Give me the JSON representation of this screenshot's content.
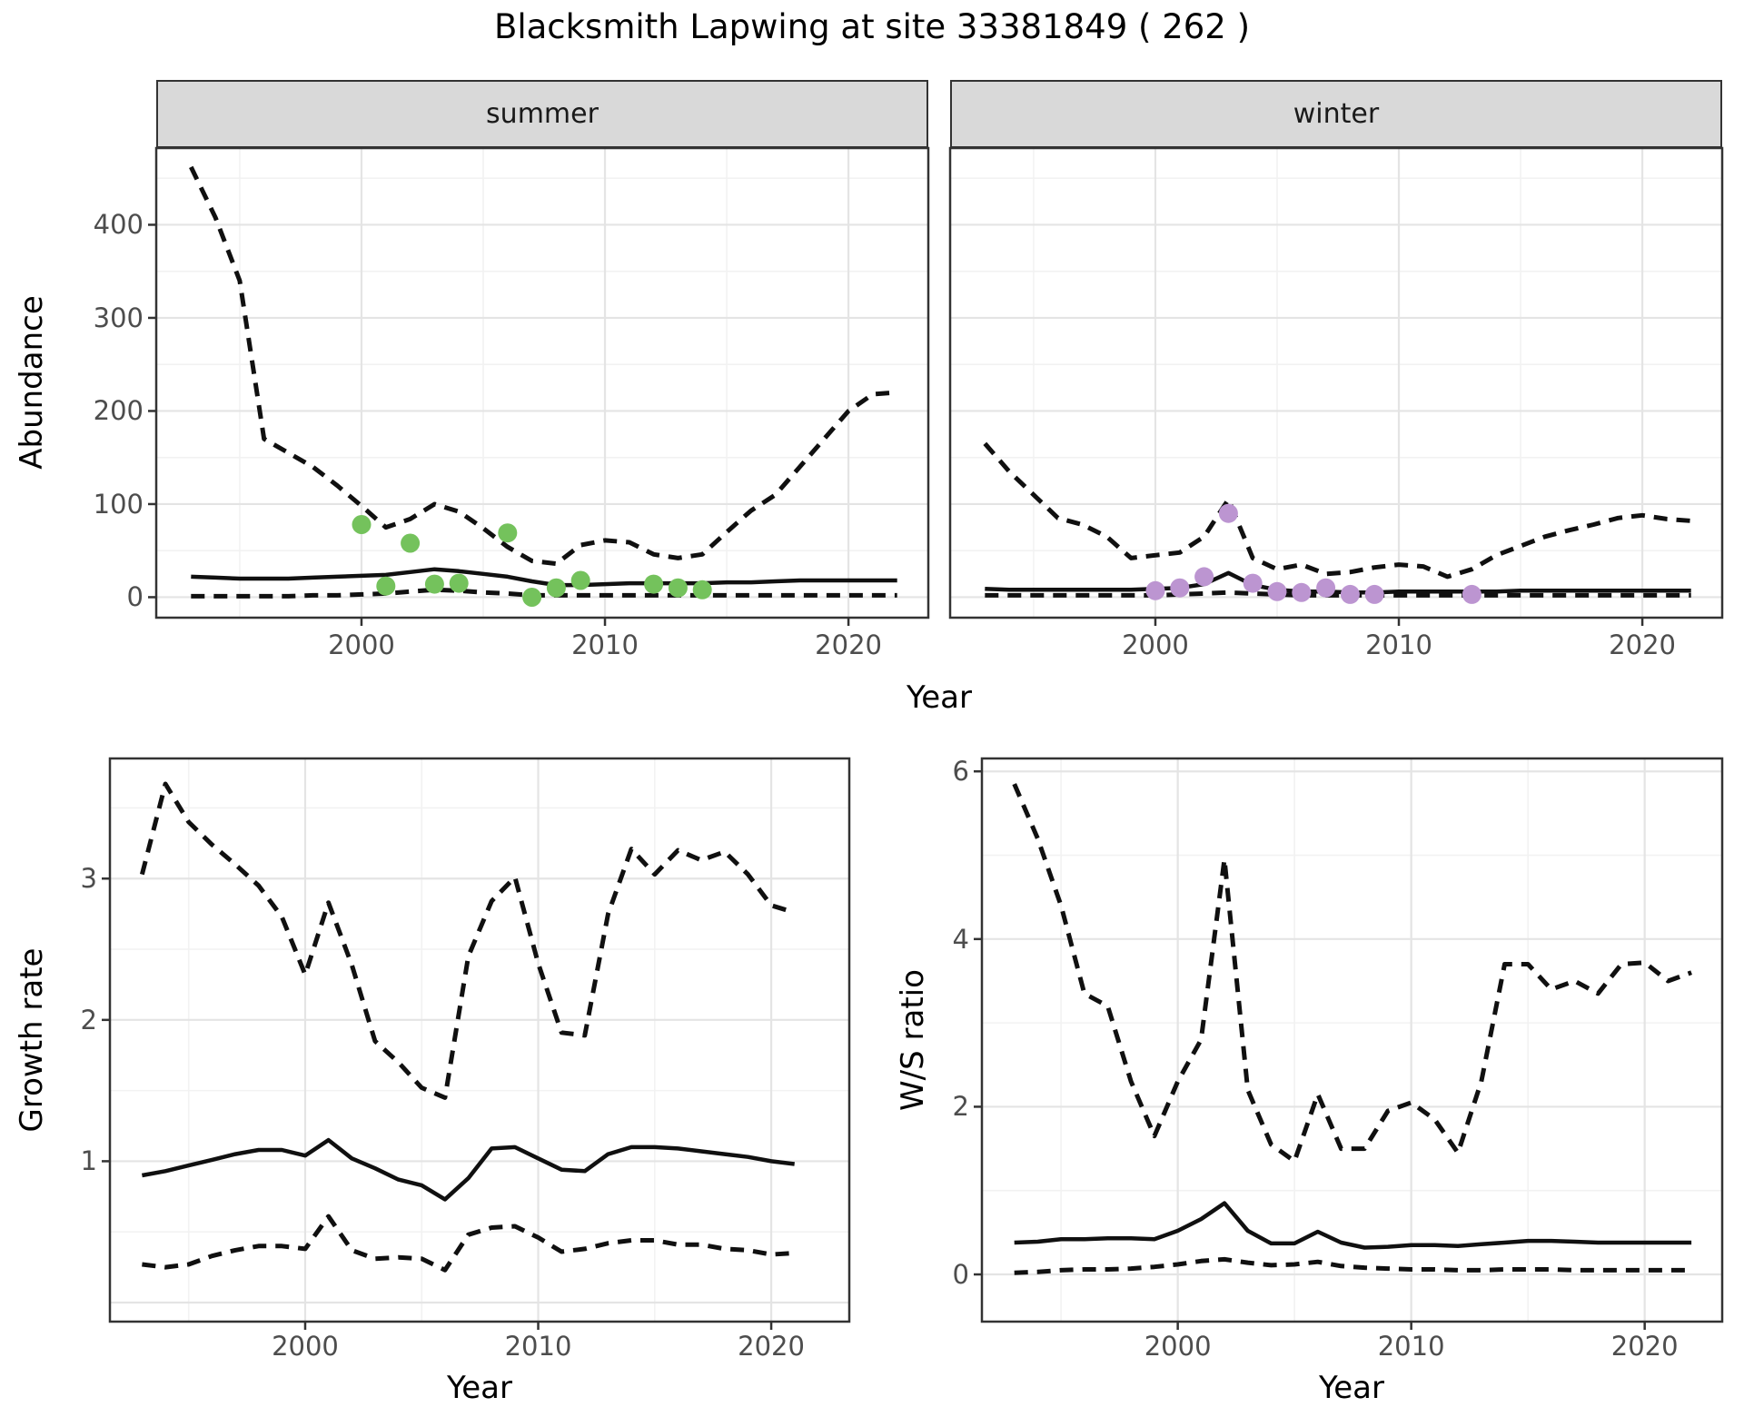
{
  "labels": {
    "title": "Blacksmith Lapwing at site 33381849 ( 262 )",
    "year": "Year",
    "abundance": "Abundance",
    "growth": "Growth rate",
    "ws": "W/S ratio"
  },
  "facets": [
    {
      "label": "summer"
    },
    {
      "label": "winter"
    }
  ],
  "colors": {
    "summer_point": "#74C25C",
    "winter_point": "#BC95D1",
    "line": "#101010",
    "strip_bg": "#D9D9D9",
    "panel_border": "#333333",
    "grid_major": "#E4E4E4",
    "grid_minor": "#F2F2F2",
    "tick_mark": "#333333",
    "tick_text": "#4D4D4D"
  },
  "chart_data": [
    {
      "id": "abundance_summer",
      "type": "line",
      "facet": "summer",
      "xlabel": "Year",
      "ylabel": "Abundance",
      "xlim": [
        1991.57,
        2023.28
      ],
      "ylim": [
        -22,
        482.4
      ],
      "xticks": [
        2000,
        2010,
        2020
      ],
      "xticks_minor": [
        1995,
        2005,
        2015
      ],
      "yticks": [
        0,
        100,
        200,
        300,
        400
      ],
      "yticks_grid": [
        0,
        100,
        200,
        300,
        400
      ],
      "yticks_minor": [
        50,
        150,
        250,
        350,
        450
      ],
      "x": [
        1993,
        1994,
        1995,
        1996,
        1997,
        1998,
        1999,
        2000,
        2001,
        2002,
        2003,
        2004,
        2005,
        2006,
        2007,
        2008,
        2009,
        2010,
        2011,
        2012,
        2013,
        2014,
        2015,
        2016,
        2017,
        2018,
        2019,
        2020,
        2021,
        2022
      ],
      "series": [
        {
          "name": "upper_95CI",
          "style": "dashed",
          "values": [
            462,
            408,
            340,
            170,
            155,
            140,
            120,
            98,
            75,
            84,
            100,
            92,
            74,
            54,
            39,
            36,
            56,
            61,
            59,
            46,
            42,
            46,
            70,
            93,
            110,
            140,
            170,
            200,
            218,
            220
          ]
        },
        {
          "name": "lower_95CI",
          "style": "dashed",
          "values": [
            1,
            1,
            1,
            1,
            1,
            2,
            2,
            3,
            4,
            6,
            8,
            7,
            5,
            4,
            2,
            2,
            2,
            2,
            2,
            2,
            2,
            2,
            2,
            2,
            2,
            2,
            2,
            2,
            2,
            2
          ]
        },
        {
          "name": "median",
          "style": "solid",
          "values": [
            22,
            21,
            20,
            20,
            20,
            21,
            22,
            23,
            24,
            27,
            30,
            28,
            25,
            22,
            17,
            13,
            13,
            14,
            15,
            15,
            15,
            15,
            16,
            16,
            17,
            18,
            18,
            18,
            18,
            18
          ]
        }
      ],
      "points": {
        "name": "observed_count",
        "color_key": "summer_point",
        "x": [
          2000,
          2001,
          2002,
          2003,
          2004,
          2006,
          2007,
          2008,
          2009,
          2012,
          2013,
          2014
        ],
        "y": [
          78,
          12,
          58,
          14,
          15,
          69,
          0,
          10,
          18,
          14,
          10,
          8
        ]
      }
    },
    {
      "id": "abundance_winter",
      "type": "line",
      "facet": "winter",
      "xlabel": "Year",
      "ylabel": "Abundance",
      "xlim": [
        1991.57,
        2023.28
      ],
      "ylim": [
        -22,
        482.4
      ],
      "xticks": [
        2000,
        2010,
        2020
      ],
      "xticks_minor": [
        1995,
        2005,
        2015
      ],
      "yticks": [
        0,
        100,
        200,
        300,
        400
      ],
      "yticks_grid": [
        0,
        100,
        200,
        300,
        400
      ],
      "yticks_minor": [
        50,
        150,
        250,
        350,
        450
      ],
      "x": [
        1993,
        1994,
        1995,
        1996,
        1997,
        1998,
        1999,
        2000,
        2001,
        2002,
        2003,
        2004,
        2005,
        2006,
        2007,
        2008,
        2009,
        2010,
        2011,
        2012,
        2013,
        2014,
        2015,
        2016,
        2017,
        2018,
        2019,
        2020,
        2021,
        2022
      ],
      "series": [
        {
          "name": "upper_95CI",
          "style": "dashed",
          "values": [
            165,
            135,
            110,
            85,
            78,
            65,
            42,
            45,
            48,
            65,
            105,
            42,
            30,
            35,
            25,
            27,
            32,
            35,
            33,
            22,
            30,
            45,
            55,
            65,
            72,
            78,
            85,
            88,
            84,
            82
          ]
        },
        {
          "name": "lower_95CI",
          "style": "dashed",
          "values": [
            2,
            2,
            2,
            2,
            2,
            2,
            2,
            2,
            3,
            4,
            5,
            4,
            3,
            2,
            2,
            2,
            2,
            2,
            2,
            2,
            2,
            2,
            2,
            2,
            2,
            2,
            2,
            2,
            2,
            2
          ]
        },
        {
          "name": "median",
          "style": "solid",
          "values": [
            9,
            8,
            8,
            8,
            8,
            8,
            8,
            9,
            10,
            14,
            26,
            13,
            8,
            6,
            6,
            5,
            5,
            6,
            6,
            6,
            6,
            6,
            7,
            7,
            7,
            7,
            7,
            7,
            7,
            7
          ]
        }
      ],
      "points": {
        "name": "observed_count",
        "color_key": "winter_point",
        "x": [
          2000,
          2001,
          2002,
          2003,
          2004,
          2005,
          2006,
          2007,
          2008,
          2009,
          2013
        ],
        "y": [
          7,
          10,
          22,
          90,
          15,
          6,
          5,
          10,
          3,
          3,
          3
        ]
      }
    },
    {
      "id": "growth_rate",
      "type": "line",
      "xlabel": "Year",
      "ylabel": "Growth rate",
      "xlim": [
        1991.62,
        2023.35
      ],
      "ylim": [
        -0.135,
        3.85
      ],
      "xticks": [
        2000,
        2010,
        2020
      ],
      "xticks_minor": [
        1995,
        2005,
        2015
      ],
      "yticks": [
        1,
        2,
        3
      ],
      "yticks_grid": [
        0,
        1,
        2,
        3
      ],
      "yticks_minor": [
        0.5,
        1.5,
        2.5,
        3.5
      ],
      "x": [
        1993,
        1994,
        1995,
        1996,
        1997,
        1998,
        1999,
        2000,
        2001,
        2002,
        2003,
        2004,
        2005,
        2006,
        2007,
        2008,
        2009,
        2010,
        2011,
        2012,
        2013,
        2014,
        2015,
        2016,
        2017,
        2018,
        2019,
        2020,
        2021
      ],
      "series": [
        {
          "name": "upper_95CI",
          "style": "dashed",
          "values": [
            3.03,
            3.67,
            3.4,
            3.24,
            3.1,
            2.95,
            2.73,
            2.32,
            2.83,
            2.39,
            1.85,
            1.7,
            1.52,
            1.45,
            2.45,
            2.84,
            3.01,
            2.4,
            1.91,
            1.89,
            2.75,
            3.21,
            3.03,
            3.2,
            3.13,
            3.19,
            3.03,
            2.81,
            2.76
          ]
        },
        {
          "name": "lower_95CI",
          "style": "dashed",
          "values": [
            0.27,
            0.25,
            0.27,
            0.33,
            0.37,
            0.4,
            0.4,
            0.38,
            0.61,
            0.37,
            0.31,
            0.32,
            0.31,
            0.23,
            0.48,
            0.53,
            0.54,
            0.46,
            0.36,
            0.38,
            0.42,
            0.44,
            0.44,
            0.41,
            0.41,
            0.38,
            0.37,
            0.34,
            0.35
          ]
        },
        {
          "name": "median",
          "style": "solid",
          "values": [
            0.9,
            0.93,
            0.97,
            1.01,
            1.05,
            1.08,
            1.08,
            1.04,
            1.15,
            1.02,
            0.95,
            0.87,
            0.83,
            0.73,
            0.88,
            1.09,
            1.1,
            1.02,
            0.94,
            0.93,
            1.05,
            1.1,
            1.1,
            1.09,
            1.07,
            1.05,
            1.03,
            1.0,
            0.98
          ]
        }
      ]
    },
    {
      "id": "ws_ratio",
      "type": "line",
      "xlabel": "Year",
      "ylabel": "W/S ratio",
      "xlim": [
        1991.61,
        2023.32
      ],
      "ylim": [
        -0.563,
        6.154
      ],
      "xticks": [
        2000,
        2010,
        2020
      ],
      "xticks_minor": [
        1995,
        2005,
        2015
      ],
      "yticks": [
        0,
        2,
        4,
        6
      ],
      "yticks_grid": [
        0,
        2,
        4,
        6
      ],
      "yticks_minor": [
        1,
        3,
        5
      ],
      "x": [
        1993,
        1994,
        1995,
        1996,
        1997,
        1998,
        1999,
        2000,
        2001,
        2002,
        2003,
        2004,
        2005,
        2006,
        2007,
        2008,
        2009,
        2010,
        2011,
        2012,
        2013,
        2014,
        2015,
        2016,
        2017,
        2018,
        2019,
        2020,
        2021,
        2022
      ],
      "series": [
        {
          "name": "upper_95CI",
          "style": "dashed",
          "values": [
            5.85,
            5.2,
            4.4,
            3.35,
            3.2,
            2.3,
            1.65,
            2.3,
            2.8,
            4.95,
            2.2,
            1.55,
            1.35,
            2.15,
            1.5,
            1.5,
            1.95,
            2.05,
            1.85,
            1.45,
            2.3,
            3.7,
            3.7,
            3.4,
            3.5,
            3.35,
            3.7,
            3.72,
            3.5,
            3.6
          ]
        },
        {
          "name": "lower_95CI",
          "style": "dashed",
          "values": [
            0.02,
            0.03,
            0.05,
            0.06,
            0.06,
            0.07,
            0.09,
            0.12,
            0.16,
            0.18,
            0.14,
            0.11,
            0.12,
            0.15,
            0.1,
            0.08,
            0.07,
            0.06,
            0.06,
            0.05,
            0.05,
            0.06,
            0.06,
            0.06,
            0.05,
            0.05,
            0.05,
            0.05,
            0.05,
            0.05
          ]
        },
        {
          "name": "median",
          "style": "solid",
          "values": [
            0.38,
            0.39,
            0.42,
            0.42,
            0.43,
            0.43,
            0.42,
            0.52,
            0.66,
            0.85,
            0.52,
            0.37,
            0.37,
            0.51,
            0.38,
            0.32,
            0.33,
            0.35,
            0.35,
            0.34,
            0.36,
            0.38,
            0.4,
            0.4,
            0.39,
            0.38,
            0.38,
            0.38,
            0.38,
            0.38
          ]
        }
      ]
    }
  ]
}
